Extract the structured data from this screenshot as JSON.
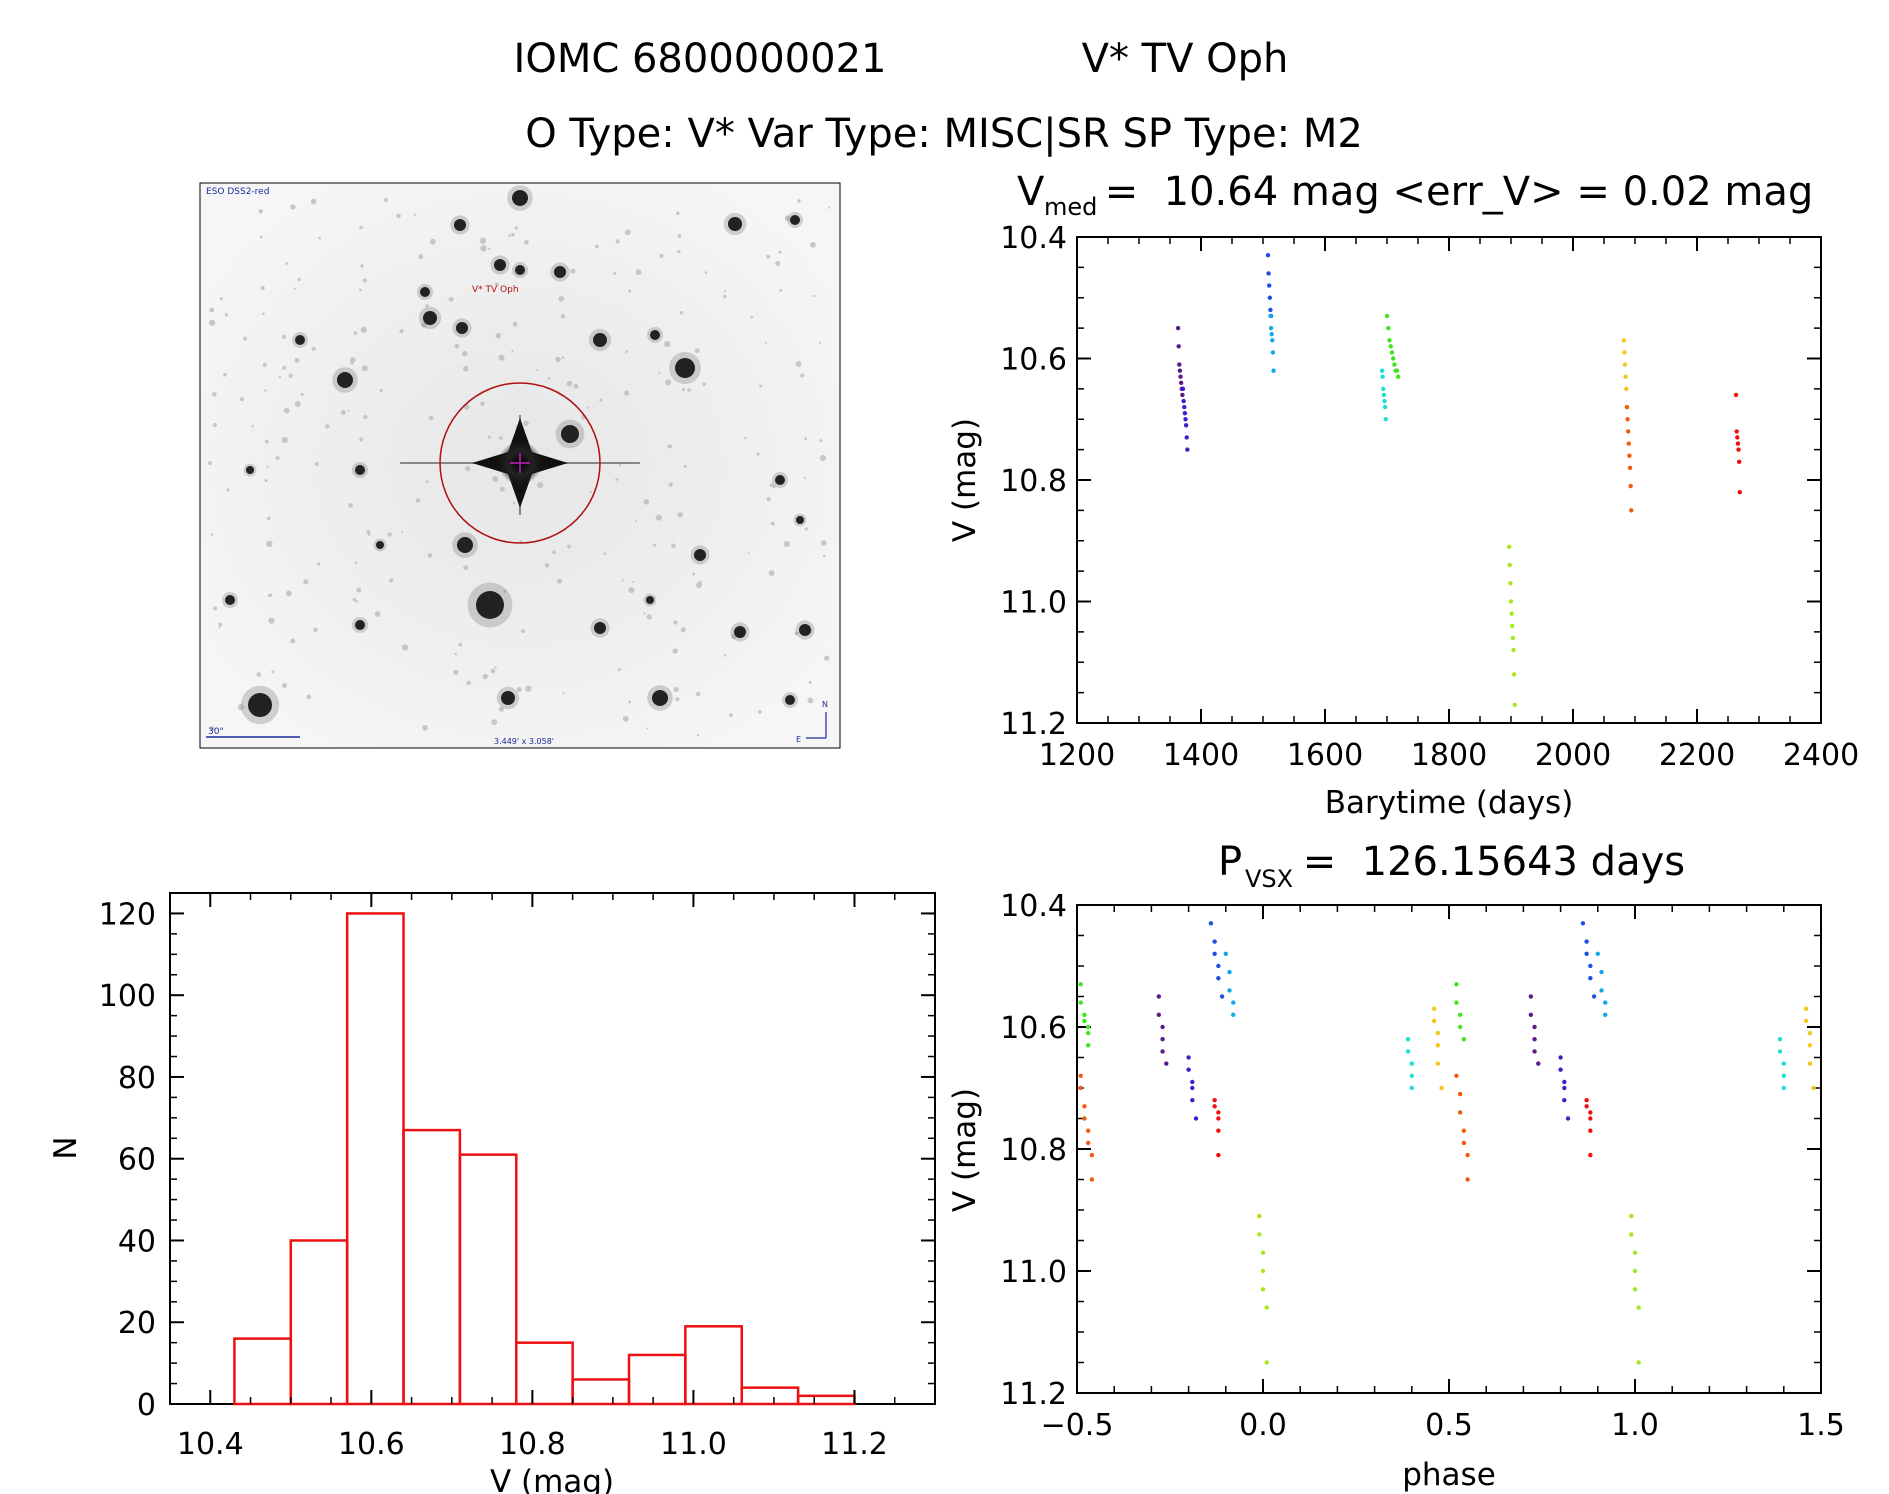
{
  "header": {
    "line1_id": "IOMC 6800000021",
    "line1_name": "V* TV Oph",
    "line2": "O Type: V*  Var Type: MISC|SR  SP Type: M2"
  },
  "finder": {
    "source": "ESO DSS2-red",
    "target_label": "V* TV Oph",
    "scale_label": "30\"",
    "fov_label": "3.449' x 3.058'",
    "north": "N",
    "east": "E"
  },
  "colors": {
    "c1": "#5a1a8a",
    "c2": "#3a22c8",
    "c3": "#1d4fe6",
    "c4": "#12a9e8",
    "c5": "#20dfd2",
    "c6": "#3de61e",
    "c7": "#a8e61e",
    "c8": "#f2c818",
    "c9": "#f25a0c",
    "c10": "#ee1010",
    "histogram": "#ee1010"
  },
  "chart_data": [
    {
      "type": "scatter",
      "title_main": "V",
      "title_sub": "med",
      "title_rest": " =  10.64 mag <err_V> = 0.02 mag",
      "xlabel": "Barytime (days)",
      "ylabel": "V (mag)",
      "xlim": [
        1200,
        2400
      ],
      "ylim": [
        11.2,
        10.4
      ],
      "xticks": [
        "1200",
        "1400",
        "1600",
        "1800",
        "2000",
        "2200",
        "2400"
      ],
      "yticks": [
        "10.4",
        "10.6",
        "10.8",
        "11.0",
        "11.2"
      ],
      "series": [
        {
          "color_key": "c1",
          "x": [
            1363,
            1364,
            1365,
            1366,
            1367,
            1368,
            1369,
            1370
          ],
          "y": [
            10.55,
            10.58,
            10.61,
            10.62,
            10.63,
            10.64,
            10.65,
            10.66
          ]
        },
        {
          "color_key": "c2",
          "x": [
            1371,
            1372,
            1373,
            1374,
            1375,
            1376,
            1377,
            1378
          ],
          "y": [
            10.65,
            10.67,
            10.68,
            10.69,
            10.7,
            10.71,
            10.73,
            10.75
          ]
        },
        {
          "color_key": "c3",
          "x": [
            1508,
            1509,
            1510,
            1511,
            1512,
            1513
          ],
          "y": [
            10.43,
            10.46,
            10.48,
            10.5,
            10.52,
            10.53
          ]
        },
        {
          "color_key": "c4",
          "x": [
            1512,
            1513,
            1514,
            1515,
            1516,
            1517
          ],
          "y": [
            10.53,
            10.55,
            10.56,
            10.57,
            10.59,
            10.62
          ]
        },
        {
          "color_key": "c5",
          "x": [
            1692,
            1693,
            1694,
            1695,
            1696,
            1697,
            1698
          ],
          "y": [
            10.62,
            10.63,
            10.65,
            10.66,
            10.67,
            10.68,
            10.7
          ]
        },
        {
          "color_key": "c6",
          "x": [
            1700,
            1702,
            1704,
            1706,
            1708,
            1710,
            1712,
            1714,
            1716,
            1718
          ],
          "y": [
            10.53,
            10.55,
            10.57,
            10.58,
            10.59,
            10.6,
            10.61,
            10.62,
            10.62,
            10.63
          ]
        },
        {
          "color_key": "c7",
          "x": [
            1897,
            1898,
            1899,
            1900,
            1901,
            1902,
            1903,
            1904,
            1905,
            1906
          ],
          "y": [
            10.91,
            10.94,
            10.97,
            11.0,
            11.02,
            11.04,
            11.06,
            11.08,
            11.12,
            11.17
          ]
        },
        {
          "color_key": "c8",
          "x": [
            2082,
            2083,
            2084,
            2085,
            2086,
            2087
          ],
          "y": [
            10.57,
            10.59,
            10.61,
            10.63,
            10.65,
            10.68
          ]
        },
        {
          "color_key": "c9",
          "x": [
            2087,
            2088,
            2089,
            2090,
            2091,
            2092,
            2093,
            2094
          ],
          "y": [
            10.68,
            10.7,
            10.72,
            10.74,
            10.76,
            10.78,
            10.81,
            10.85
          ]
        },
        {
          "color_key": "c10",
          "x": [
            2263,
            2264,
            2265,
            2266,
            2267,
            2268,
            2269
          ],
          "y": [
            10.66,
            10.72,
            10.73,
            10.74,
            10.75,
            10.77,
            10.82
          ]
        }
      ]
    },
    {
      "type": "bar",
      "xlabel": "V (mag)",
      "ylabel": "N",
      "xlim": [
        10.35,
        11.3
      ],
      "ylim": [
        0,
        125
      ],
      "xticks": [
        "10.4",
        "10.6",
        "10.8",
        "11.0",
        "11.2"
      ],
      "yticks": [
        "0",
        "20",
        "40",
        "60",
        "80",
        "100",
        "120"
      ],
      "bin_edges": [
        10.43,
        10.5,
        10.57,
        10.64,
        10.71,
        10.78,
        10.85,
        10.92,
        10.99,
        11.06,
        11.13,
        11.2
      ],
      "values": [
        16,
        40,
        120,
        67,
        61,
        15,
        6,
        12,
        19,
        4,
        2
      ]
    },
    {
      "type": "scatter",
      "title_main": "P",
      "title_sub": "VSX",
      "title_rest": " =  126.15643 days",
      "xlabel": "phase",
      "ylabel": "V (mag)",
      "xlim": [
        -0.5,
        1.5
      ],
      "ylim": [
        11.2,
        10.4
      ],
      "xticks": [
        "−0.5",
        "0.0",
        "0.5",
        "1.0",
        "1.5"
      ],
      "yticks": [
        "10.4",
        "10.6",
        "10.8",
        "11.0",
        "11.2"
      ],
      "series": [
        {
          "color_key": "c6",
          "x": [
            -0.49,
            -0.49,
            -0.48,
            -0.48,
            -0.47,
            -0.47,
            -0.47,
            0.52,
            0.52,
            0.53,
            0.53,
            0.54
          ],
          "y": [
            10.53,
            10.56,
            10.58,
            10.59,
            10.6,
            10.61,
            10.63,
            10.53,
            10.56,
            10.58,
            10.6,
            10.62
          ]
        },
        {
          "color_key": "c9",
          "x": [
            -0.49,
            -0.49,
            -0.48,
            -0.48,
            -0.47,
            -0.47,
            -0.46,
            -0.46,
            0.52,
            0.53,
            0.53,
            0.54,
            0.54,
            0.55,
            0.55
          ],
          "y": [
            10.68,
            10.7,
            10.73,
            10.75,
            10.77,
            10.79,
            10.81,
            10.85,
            10.68,
            10.71,
            10.74,
            10.77,
            10.79,
            10.81,
            10.85
          ]
        },
        {
          "color_key": "c1",
          "x": [
            -0.28,
            -0.28,
            -0.27,
            -0.27,
            -0.27,
            -0.26,
            0.72,
            0.72,
            0.73,
            0.73,
            0.73,
            0.74
          ],
          "y": [
            10.55,
            10.58,
            10.6,
            10.62,
            10.64,
            10.66,
            10.55,
            10.58,
            10.6,
            10.62,
            10.64,
            10.66
          ]
        },
        {
          "color_key": "c2",
          "x": [
            -0.2,
            -0.2,
            -0.19,
            -0.19,
            -0.19,
            -0.18,
            0.8,
            0.8,
            0.81,
            0.81,
            0.81,
            0.82
          ],
          "y": [
            10.65,
            10.67,
            10.69,
            10.7,
            10.72,
            10.75,
            10.65,
            10.67,
            10.69,
            10.7,
            10.72,
            10.75
          ]
        },
        {
          "color_key": "c10",
          "x": [
            -0.13,
            -0.13,
            -0.12,
            -0.12,
            -0.12,
            -0.12,
            0.87,
            0.87,
            0.88,
            0.88,
            0.88,
            0.88
          ],
          "y": [
            10.72,
            10.73,
            10.74,
            10.75,
            10.77,
            10.81,
            10.72,
            10.73,
            10.74,
            10.75,
            10.77,
            10.81
          ]
        },
        {
          "color_key": "c3",
          "x": [
            -0.14,
            -0.13,
            -0.13,
            -0.12,
            -0.12,
            -0.11,
            0.86,
            0.87,
            0.87,
            0.88,
            0.88,
            0.89
          ],
          "y": [
            10.43,
            10.46,
            10.48,
            10.5,
            10.52,
            10.55,
            10.43,
            10.46,
            10.48,
            10.5,
            10.52,
            10.55
          ]
        },
        {
          "color_key": "c4",
          "x": [
            -0.1,
            -0.09,
            -0.09,
            -0.08,
            -0.08,
            0.9,
            0.91,
            0.91,
            0.92,
            0.92
          ],
          "y": [
            10.48,
            10.51,
            10.54,
            10.56,
            10.58,
            10.48,
            10.51,
            10.54,
            10.56,
            10.58
          ]
        },
        {
          "color_key": "c7",
          "x": [
            -0.01,
            -0.01,
            -0.0,
            0.0,
            0.0,
            0.01,
            0.01,
            0.99,
            0.99,
            1.0,
            1.0,
            1.0,
            1.01,
            1.01
          ],
          "y": [
            10.91,
            10.94,
            10.97,
            11.0,
            11.03,
            11.06,
            11.15,
            10.91,
            10.94,
            10.97,
            11.0,
            11.03,
            11.06,
            11.15
          ]
        },
        {
          "color_key": "c5",
          "x": [
            0.39,
            0.39,
            0.4,
            0.4,
            0.4,
            1.39,
            1.39,
            1.4,
            1.4,
            1.4
          ],
          "y": [
            10.62,
            10.64,
            10.66,
            10.68,
            10.7,
            10.62,
            10.64,
            10.66,
            10.68,
            10.7
          ]
        },
        {
          "color_key": "c8",
          "x": [
            0.46,
            0.46,
            0.47,
            0.47,
            0.47,
            0.48,
            1.46,
            1.46,
            1.47,
            1.47,
            1.47,
            1.48
          ],
          "y": [
            10.57,
            10.59,
            10.61,
            10.63,
            10.66,
            10.7,
            10.57,
            10.59,
            10.61,
            10.63,
            10.66,
            10.7
          ]
        }
      ]
    }
  ]
}
